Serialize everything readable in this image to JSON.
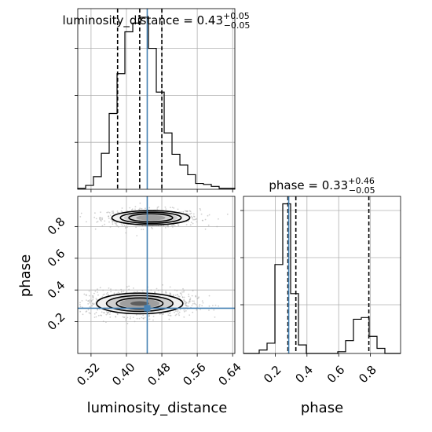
{
  "chart_data": {
    "type": "corner",
    "parameters": [
      "luminosity_distance",
      "phase"
    ],
    "x_tick_labels": {
      "luminosity_distance": [
        "0.32",
        "0.40",
        "0.48",
        "0.56",
        "0.64"
      ],
      "phase": [
        "0.2",
        "0.4",
        "0.6",
        "0.8"
      ]
    },
    "y_tick_labels": {
      "phase": [
        "0.2",
        "0.4",
        "0.6",
        "0.8"
      ]
    },
    "titles": {
      "luminosity_distance": {
        "prefix": "luminosity_distance = 0.43",
        "sup": "+0.05",
        "sub": "−0.05"
      },
      "phase": {
        "prefix": "phase = 0.33",
        "sup": "+0.46",
        "sub": "−0.05"
      }
    },
    "xlabel_left": "luminosity_distance",
    "xlabel_right": "phase",
    "ylabel_2d": "phase",
    "grid": true,
    "ranges": {
      "luminosity_distance": [
        0.29,
        0.645
      ],
      "phase": [
        0.0,
        0.99
      ]
    },
    "truth": {
      "luminosity_distance": 0.447,
      "phase": 0.285
    },
    "histograms": {
      "luminosity_distance": {
        "bin_edges": [
          0.29,
          0.3078,
          0.3255,
          0.3433,
          0.361,
          0.3788,
          0.3965,
          0.4143,
          0.432,
          0.4498,
          0.4675,
          0.4853,
          0.503,
          0.5208,
          0.5385,
          0.5563,
          0.574,
          0.5918,
          0.6095,
          0.6273,
          0.645
        ],
        "counts": [
          1,
          4,
          13,
          37,
          78,
          119,
          162,
          171,
          177,
          145,
          100,
          58,
          36,
          25,
          15,
          6,
          5,
          3,
          1,
          1
        ],
        "quantiles": [
          0.38,
          0.43,
          0.48
        ]
      },
      "phase": {
        "bin_edges": [
          0.0,
          0.0495,
          0.099,
          0.1485,
          0.198,
          0.2475,
          0.297,
          0.3465,
          0.396,
          0.4455,
          0.495,
          0.5445,
          0.594,
          0.6435,
          0.693,
          0.7425,
          0.792,
          0.8415,
          0.891,
          0.9405,
          0.99
        ],
        "counts": [
          0,
          0,
          4,
          12,
          104,
          175,
          70,
          10,
          0,
          0,
          0,
          0,
          2,
          15,
          40,
          42,
          20,
          6,
          0,
          0
        ],
        "quantiles": [
          0.28,
          0.33,
          0.79
        ]
      }
    },
    "density_2d": {
      "clusters": [
        {
          "center": [
            0.455,
            0.855
          ],
          "spread": [
            0.055,
            0.028
          ],
          "count": 650
        },
        {
          "center": [
            0.43,
            0.315
          ],
          "spread": [
            0.06,
            0.04
          ],
          "count": 1150
        }
      ],
      "contour_levels": [
        0.5,
        1.0,
        1.5
      ],
      "fill_shades": [
        "#f2f2f2",
        "#cccccc",
        "#999999",
        "#555555",
        "#000000"
      ]
    },
    "colors": {
      "histogram": "#000000",
      "quantile": "#000000",
      "truth": "#4682b4",
      "points": "#aaaaaa",
      "contour": "#000000",
      "grid": "#b0b0b0"
    }
  }
}
